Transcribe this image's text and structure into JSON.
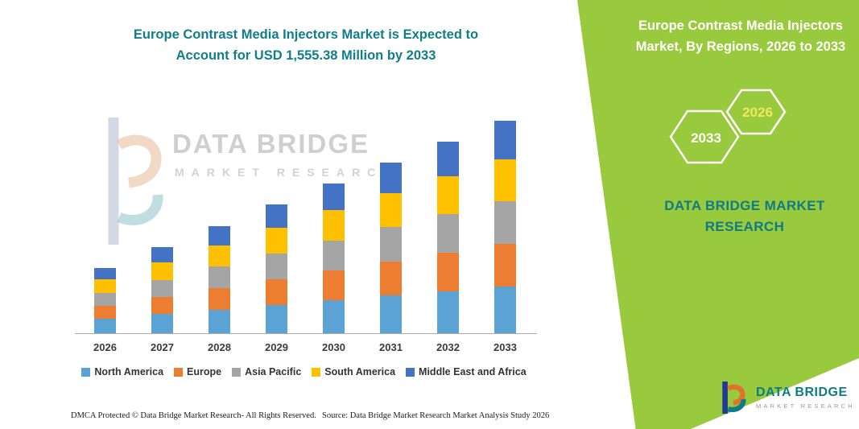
{
  "colors": {
    "panel_green": "#99c93c",
    "teal": "#107e8a",
    "axis": "#adadad",
    "hex_year_right": "#f2e860"
  },
  "main_title": {
    "line1": "Europe Contrast Media Injectors Market is Expected to",
    "line2": "Account for USD 1,555.38 Million by 2033"
  },
  "side_panel": {
    "title": "Europe Contrast Media Injectors Market, By Regions, 2026 to 2033",
    "hex_left_year": "2033",
    "hex_right_year": "2026",
    "brand": "DATA BRIDGE MARKET RESEARCH"
  },
  "watermark": {
    "line1": "DATA BRIDGE",
    "line2": "MARKET RESEARCH"
  },
  "footer": {
    "dmca": "DMCA Protected © Data Bridge Market Research-  All Rights Reserved.",
    "source": "Source: Data Bridge Market Research  Market Analysis Study 2026"
  },
  "logo": {
    "name": "DATA BRIDGE",
    "tagline": "MARKET RESEARCH"
  },
  "chart_data": {
    "type": "bar",
    "stacked": true,
    "title": "Europe Contrast Media Injectors Market is Expected to Account for USD 1,555.38 Million by 2033",
    "unit": "USD Million",
    "categories": [
      "2026",
      "2027",
      "2028",
      "2029",
      "2030",
      "2031",
      "2032",
      "2033"
    ],
    "series": [
      {
        "name": "North America",
        "color": "#5ba3d4",
        "values": [
          105.2,
          138.6,
          172.5,
          207.0,
          241.1,
          275.0,
          308.7,
          342.2
        ]
      },
      {
        "name": "Europe",
        "color": "#ed7d31",
        "values": [
          95.6,
          126.0,
          156.8,
          188.2,
          219.2,
          250.0,
          280.6,
          311.1
        ]
      },
      {
        "name": "Asia Pacific",
        "color": "#a5a5a5",
        "values": [
          95.6,
          126.0,
          156.8,
          188.2,
          219.2,
          250.0,
          280.6,
          311.1
        ]
      },
      {
        "name": "South America",
        "color": "#ffc000",
        "values": [
          95.6,
          126.0,
          156.8,
          188.2,
          219.2,
          250.0,
          280.6,
          311.1
        ]
      },
      {
        "name": "Middle East and Africa",
        "color": "#4472c4",
        "values": [
          86.0,
          113.4,
          141.1,
          169.4,
          197.3,
          225.0,
          252.5,
          279.88
        ]
      }
    ],
    "totals": [
      478.0,
      630.0,
      784.0,
      941.0,
      1096.0,
      1250.0,
      1403.0,
      1555.38
    ],
    "ylim": [
      0,
      1555.38
    ],
    "xlabel": "",
    "ylabel": "",
    "grid": false,
    "legend_position": "bottom"
  }
}
